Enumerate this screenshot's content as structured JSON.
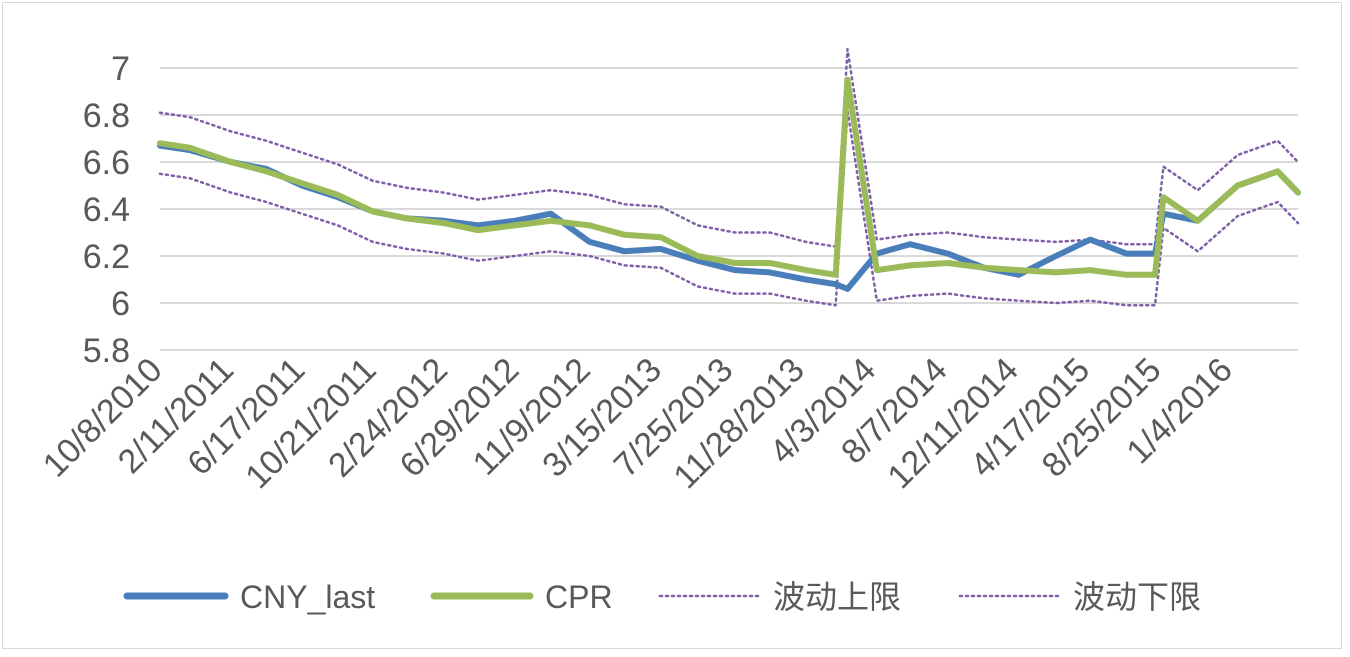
{
  "chart_data": {
    "type": "line",
    "title": "",
    "xlabel": "",
    "ylabel": "",
    "ylim": [
      5.8,
      7.0
    ],
    "yticks": [
      "5.8",
      "6",
      "6.2",
      "6.4",
      "6.6",
      "6.8",
      "7"
    ],
    "xticks": [
      "10/8/2010",
      "2/11/2011",
      "6/17/2011",
      "10/21/2011",
      "2/24/2012",
      "6/29/2012",
      "11/9/2012",
      "3/15/2013",
      "7/25/2013",
      "11/28/2013",
      "4/3/2014",
      "8/7/2014",
      "12/11/2014",
      "4/17/2015",
      "8/25/2015",
      "1/4/2016"
    ],
    "grid": true,
    "legend_position": "bottom",
    "x": [
      "2010-10-08",
      "2010-12-01",
      "2011-02-11",
      "2011-04-15",
      "2011-06-17",
      "2011-08-20",
      "2011-10-21",
      "2011-12-20",
      "2012-02-24",
      "2012-04-25",
      "2012-06-29",
      "2012-09-01",
      "2012-11-09",
      "2013-01-10",
      "2013-03-15",
      "2013-05-20",
      "2013-07-25",
      "2013-09-25",
      "2013-11-28",
      "2014-01-20",
      "2014-02-10",
      "2014-04-03",
      "2014-06-01",
      "2014-08-07",
      "2014-10-10",
      "2014-12-11",
      "2015-02-15",
      "2015-04-17",
      "2015-06-20",
      "2015-08-10",
      "2015-08-25",
      "2015-10-25",
      "2016-01-04",
      "2016-03-15",
      "2016-04-20"
    ],
    "series": [
      {
        "name": "CNY_last",
        "color": "#4a7ebb",
        "style": "solid",
        "values": [
          6.67,
          6.65,
          6.6,
          6.57,
          6.5,
          6.45,
          6.39,
          6.36,
          6.35,
          6.33,
          6.35,
          6.38,
          6.26,
          6.22,
          6.23,
          6.18,
          6.14,
          6.13,
          6.1,
          6.08,
          6.06,
          6.21,
          6.25,
          6.21,
          6.15,
          6.12,
          6.2,
          6.27,
          6.21,
          6.21,
          6.38,
          6.35,
          6.5,
          6.56,
          6.47
        ]
      },
      {
        "name": "CPR",
        "color": "#9bbb59",
        "style": "solid",
        "values": [
          6.68,
          6.66,
          6.6,
          6.56,
          6.51,
          6.46,
          6.39,
          6.36,
          6.34,
          6.31,
          6.33,
          6.35,
          6.33,
          6.29,
          6.28,
          6.2,
          6.17,
          6.17,
          6.14,
          6.12,
          6.95,
          6.14,
          6.16,
          6.17,
          6.15,
          6.14,
          6.13,
          6.14,
          6.12,
          6.12,
          6.45,
          6.35,
          6.5,
          6.56,
          6.47
        ]
      },
      {
        "name": "波动上限",
        "color": "#7f5fa8",
        "style": "dotted",
        "values": [
          6.81,
          6.79,
          6.73,
          6.69,
          6.64,
          6.59,
          6.52,
          6.49,
          6.47,
          6.44,
          6.46,
          6.48,
          6.46,
          6.42,
          6.41,
          6.33,
          6.3,
          6.3,
          6.26,
          6.24,
          7.08,
          6.27,
          6.29,
          6.3,
          6.28,
          6.27,
          6.26,
          6.27,
          6.25,
          6.25,
          6.58,
          6.48,
          6.63,
          6.69,
          6.6
        ]
      },
      {
        "name": "波动下限",
        "color": "#7f5fa8",
        "style": "dotted",
        "values": [
          6.55,
          6.53,
          6.47,
          6.43,
          6.38,
          6.33,
          6.26,
          6.23,
          6.21,
          6.18,
          6.2,
          6.22,
          6.2,
          6.16,
          6.15,
          6.07,
          6.04,
          6.04,
          6.01,
          5.99,
          6.82,
          6.01,
          6.03,
          6.04,
          6.02,
          6.01,
          6.0,
          6.01,
          5.99,
          5.99,
          6.32,
          6.22,
          6.37,
          6.43,
          6.34
        ]
      }
    ]
  }
}
